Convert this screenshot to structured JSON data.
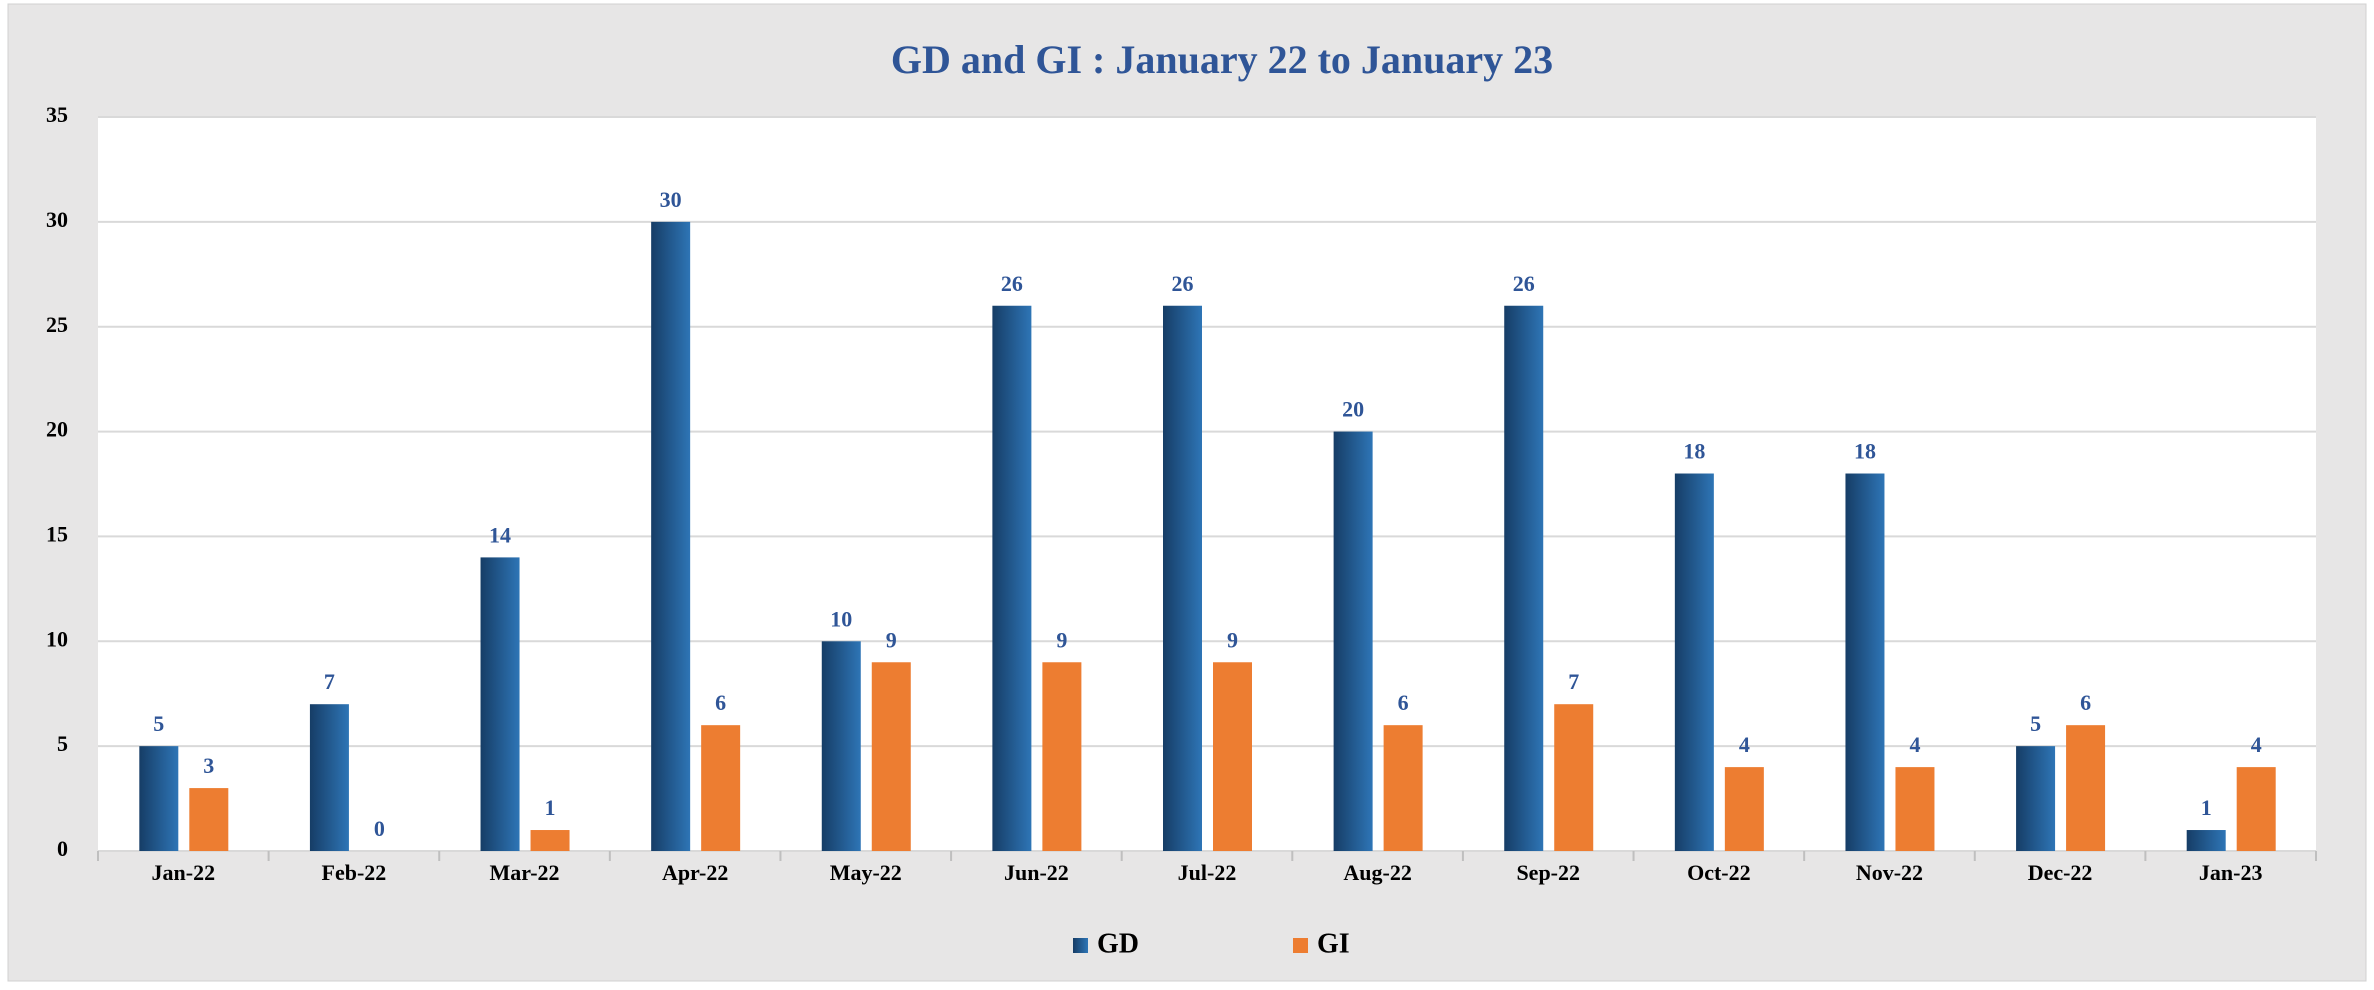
{
  "chart_data": {
    "type": "bar",
    "title": "GD and GI : January 22 to January 23",
    "categories": [
      "Jan-22",
      "Feb-22",
      "Mar-22",
      "Apr-22",
      "May-22",
      "Jun-22",
      "Jul-22",
      "Aug-22",
      "Sep-22",
      "Oct-22",
      "Nov-22",
      "Dec-22",
      "Jan-23"
    ],
    "series": [
      {
        "name": "GD",
        "color": "#2e75b6",
        "values": [
          5,
          7,
          14,
          30,
          10,
          26,
          26,
          20,
          26,
          18,
          18,
          5,
          1
        ]
      },
      {
        "name": "GI",
        "color": "#ed7d31",
        "values": [
          3,
          0,
          1,
          6,
          9,
          9,
          9,
          6,
          7,
          4,
          4,
          6,
          4
        ]
      }
    ],
    "ylim": [
      0,
      35
    ],
    "yticks": [
      0,
      5,
      10,
      15,
      20,
      25,
      30,
      35
    ],
    "grid": true,
    "legend": "bottom"
  }
}
